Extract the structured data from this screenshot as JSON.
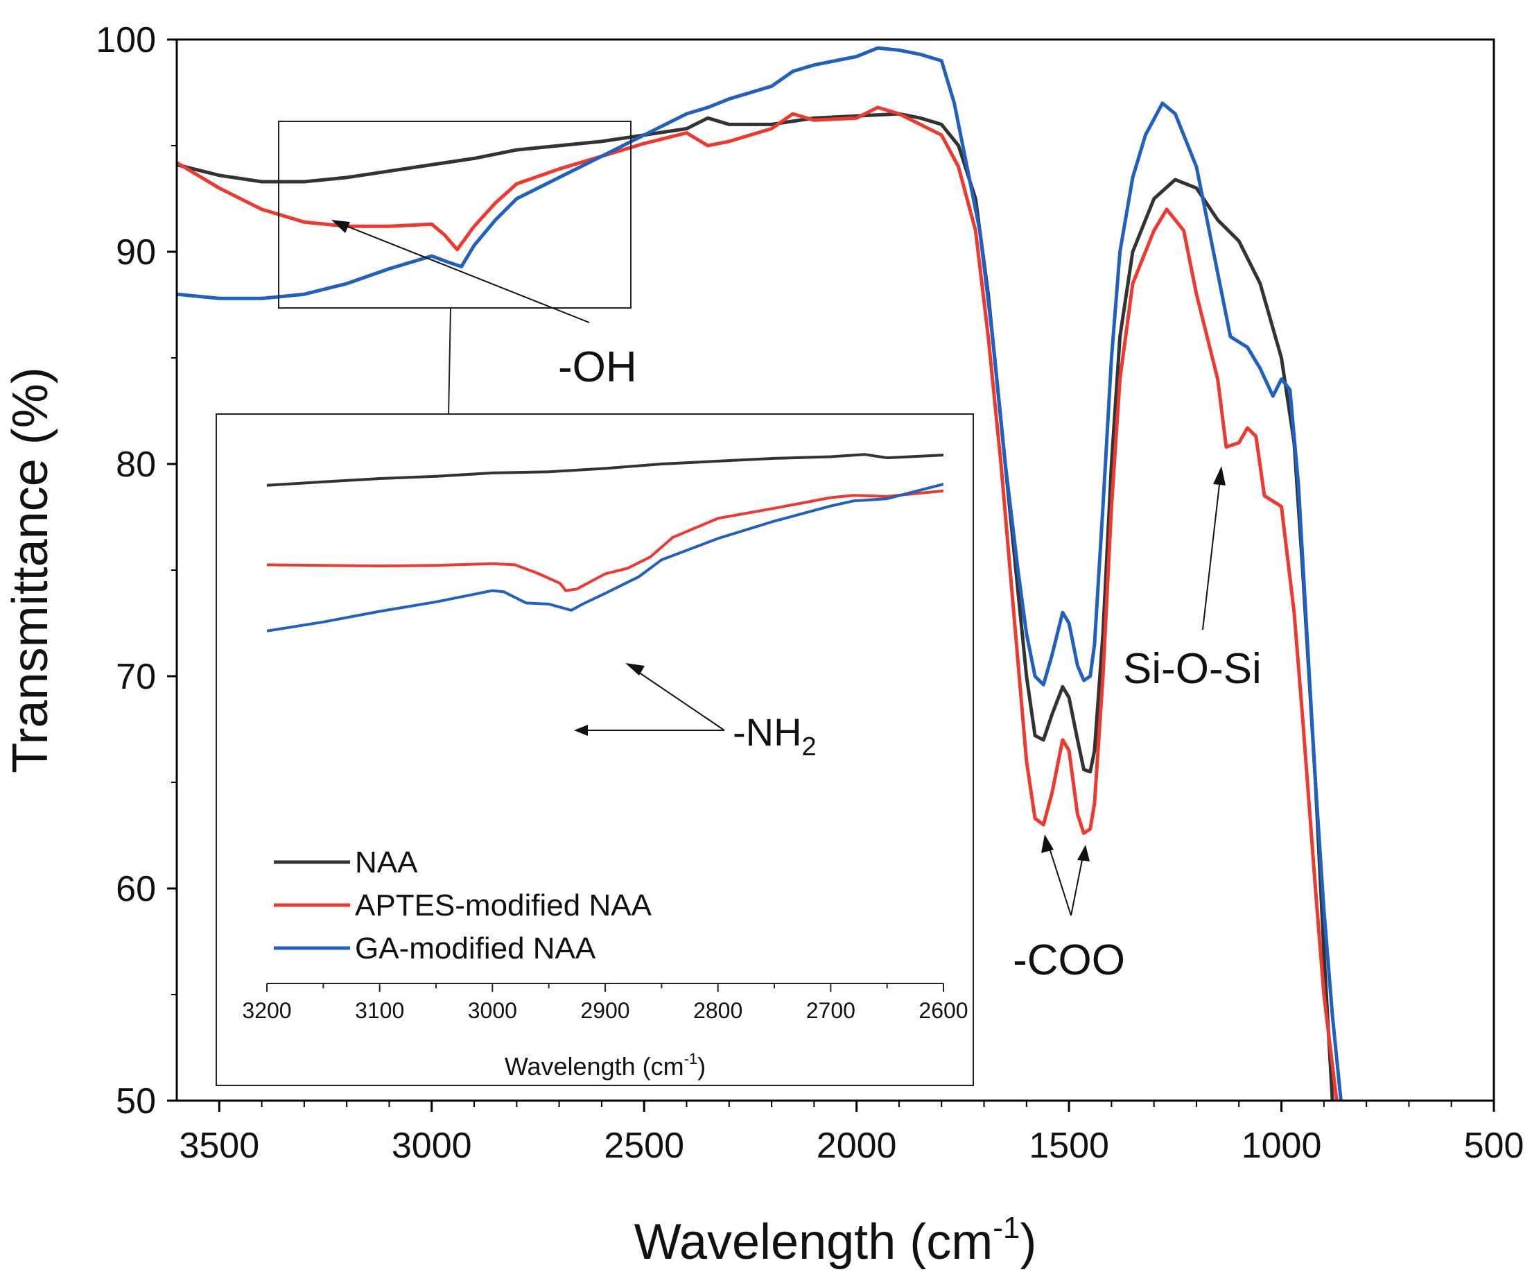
{
  "chart_data": [
    {
      "id": "main",
      "type": "line",
      "xlabel": "Wavelength (cm",
      "xlabel_sup": "-1",
      "xlabel_close": ")",
      "ylabel": "Transmittance (%)",
      "xlim": [
        3600,
        500
      ],
      "ylim": [
        50,
        100
      ],
      "x_ticks": [
        3500,
        3000,
        2500,
        2000,
        1500,
        1000,
        500
      ],
      "y_ticks": [
        50,
        60,
        70,
        80,
        90,
        100
      ],
      "series": [
        {
          "name": "NAA",
          "color": "#333333",
          "points": [
            [
              3600,
              94.1
            ],
            [
              3500,
              93.6
            ],
            [
              3400,
              93.3
            ],
            [
              3300,
              93.3
            ],
            [
              3200,
              93.5
            ],
            [
              3100,
              93.8
            ],
            [
              3000,
              94.1
            ],
            [
              2900,
              94.4
            ],
            [
              2800,
              94.8
            ],
            [
              2700,
              95.0
            ],
            [
              2600,
              95.2
            ],
            [
              2500,
              95.5
            ],
            [
              2400,
              95.8
            ],
            [
              2350,
              96.3
            ],
            [
              2300,
              96.0
            ],
            [
              2200,
              96.0
            ],
            [
              2100,
              96.3
            ],
            [
              2000,
              96.4
            ],
            [
              1900,
              96.5
            ],
            [
              1850,
              96.3
            ],
            [
              1800,
              96.0
            ],
            [
              1760,
              95.0
            ],
            [
              1720,
              92.5
            ],
            [
              1690,
              88.0
            ],
            [
              1660,
              82.0
            ],
            [
              1630,
              76.0
            ],
            [
              1600,
              70.0
            ],
            [
              1580,
              67.2
            ],
            [
              1560,
              67.0
            ],
            [
              1540,
              68.2
            ],
            [
              1515,
              69.5
            ],
            [
              1500,
              69.0
            ],
            [
              1480,
              67.0
            ],
            [
              1465,
              65.6
            ],
            [
              1450,
              65.5
            ],
            [
              1440,
              66.5
            ],
            [
              1420,
              72.0
            ],
            [
              1400,
              80.0
            ],
            [
              1380,
              86.0
            ],
            [
              1350,
              90.0
            ],
            [
              1300,
              92.5
            ],
            [
              1250,
              93.4
            ],
            [
              1200,
              93.0
            ],
            [
              1150,
              91.5
            ],
            [
              1100,
              90.5
            ],
            [
              1050,
              88.5
            ],
            [
              1000,
              85.0
            ],
            [
              970,
              81.0
            ],
            [
              950,
              75.0
            ],
            [
              920,
              65.0
            ],
            [
              900,
              57.0
            ],
            [
              880,
              50.0
            ]
          ]
        },
        {
          "name": "APTES-modified NAA",
          "color": "#ee3a2e",
          "points": [
            [
              3600,
              94.2
            ],
            [
              3500,
              93.0
            ],
            [
              3400,
              92.0
            ],
            [
              3300,
              91.4
            ],
            [
              3200,
              91.2
            ],
            [
              3100,
              91.2
            ],
            [
              3000,
              91.3
            ],
            [
              2970,
              90.8
            ],
            [
              2940,
              90.1
            ],
            [
              2900,
              91.2
            ],
            [
              2850,
              92.3
            ],
            [
              2800,
              93.2
            ],
            [
              2700,
              93.9
            ],
            [
              2600,
              94.5
            ],
            [
              2500,
              95.1
            ],
            [
              2400,
              95.6
            ],
            [
              2350,
              95.0
            ],
            [
              2300,
              95.2
            ],
            [
              2200,
              95.8
            ],
            [
              2150,
              96.5
            ],
            [
              2100,
              96.2
            ],
            [
              2000,
              96.3
            ],
            [
              1950,
              96.8
            ],
            [
              1900,
              96.5
            ],
            [
              1800,
              95.5
            ],
            [
              1760,
              94.0
            ],
            [
              1720,
              91.0
            ],
            [
              1690,
              86.0
            ],
            [
              1660,
              80.0
            ],
            [
              1630,
              73.0
            ],
            [
              1600,
              66.0
            ],
            [
              1580,
              63.3
            ],
            [
              1560,
              63.0
            ],
            [
              1540,
              64.5
            ],
            [
              1515,
              67.0
            ],
            [
              1500,
              66.5
            ],
            [
              1480,
              63.5
            ],
            [
              1465,
              62.6
            ],
            [
              1450,
              62.8
            ],
            [
              1440,
              64.0
            ],
            [
              1420,
              70.0
            ],
            [
              1400,
              78.0
            ],
            [
              1380,
              84.0
            ],
            [
              1350,
              88.5
            ],
            [
              1300,
              91.0
            ],
            [
              1270,
              92.0
            ],
            [
              1230,
              91.0
            ],
            [
              1200,
              88.0
            ],
            [
              1150,
              84.0
            ],
            [
              1130,
              80.8
            ],
            [
              1100,
              81.0
            ],
            [
              1080,
              81.7
            ],
            [
              1060,
              81.3
            ],
            [
              1040,
              78.5
            ],
            [
              1000,
              78.0
            ],
            [
              970,
              73.0
            ],
            [
              950,
              68.0
            ],
            [
              920,
              60.0
            ],
            [
              900,
              55.0
            ],
            [
              870,
              50.0
            ]
          ]
        },
        {
          "name": "GA-modified NAA",
          "color": "#2060c0",
          "points": [
            [
              3600,
              88.0
            ],
            [
              3500,
              87.8
            ],
            [
              3400,
              87.8
            ],
            [
              3300,
              88.0
            ],
            [
              3200,
              88.5
            ],
            [
              3100,
              89.2
            ],
            [
              3000,
              89.8
            ],
            [
              2960,
              89.5
            ],
            [
              2930,
              89.3
            ],
            [
              2900,
              90.3
            ],
            [
              2850,
              91.5
            ],
            [
              2800,
              92.5
            ],
            [
              2700,
              93.5
            ],
            [
              2600,
              94.5
            ],
            [
              2500,
              95.5
            ],
            [
              2400,
              96.5
            ],
            [
              2350,
              96.8
            ],
            [
              2300,
              97.2
            ],
            [
              2200,
              97.8
            ],
            [
              2150,
              98.5
            ],
            [
              2100,
              98.8
            ],
            [
              2000,
              99.2
            ],
            [
              1950,
              99.6
            ],
            [
              1900,
              99.5
            ],
            [
              1850,
              99.3
            ],
            [
              1800,
              99.0
            ],
            [
              1770,
              97.0
            ],
            [
              1740,
              94.0
            ],
            [
              1710,
              91.0
            ],
            [
              1680,
              86.0
            ],
            [
              1650,
              80.0
            ],
            [
              1620,
              75.0
            ],
            [
              1600,
              72.0
            ],
            [
              1580,
              70.0
            ],
            [
              1560,
              69.6
            ],
            [
              1540,
              71.0
            ],
            [
              1515,
              73.0
            ],
            [
              1500,
              72.5
            ],
            [
              1480,
              70.5
            ],
            [
              1465,
              69.8
            ],
            [
              1450,
              70.0
            ],
            [
              1440,
              71.5
            ],
            [
              1420,
              78.0
            ],
            [
              1400,
              85.0
            ],
            [
              1380,
              90.0
            ],
            [
              1350,
              93.5
            ],
            [
              1320,
              95.5
            ],
            [
              1280,
              97.0
            ],
            [
              1250,
              96.5
            ],
            [
              1200,
              94.0
            ],
            [
              1150,
              89.0
            ],
            [
              1120,
              86.0
            ],
            [
              1080,
              85.5
            ],
            [
              1050,
              84.5
            ],
            [
              1020,
              83.2
            ],
            [
              1000,
              84.0
            ],
            [
              980,
              83.5
            ],
            [
              960,
              79.0
            ],
            [
              940,
              72.0
            ],
            [
              920,
              65.0
            ],
            [
              900,
              59.0
            ],
            [
              880,
              54.0
            ],
            [
              860,
              50.0
            ]
          ]
        }
      ]
    },
    {
      "id": "inset",
      "type": "line",
      "xlabel": "Wavelength (cm",
      "xlabel_sup": "-1",
      "xlabel_close": ")",
      "xlim": [
        3200,
        2600
      ],
      "x_ticks": [
        3200,
        3100,
        3000,
        2900,
        2800,
        2700,
        2600
      ],
      "ylim": [
        0,
        100
      ],
      "series": [
        {
          "name": "NAA",
          "color": "#333333",
          "points": [
            [
              3200,
              88.9
            ],
            [
              3150,
              89.5
            ],
            [
              3100,
              90.1
            ],
            [
              3050,
              90.5
            ],
            [
              3000,
              91.1
            ],
            [
              2950,
              91.3
            ],
            [
              2900,
              91.9
            ],
            [
              2850,
              92.7
            ],
            [
              2800,
              93.2
            ],
            [
              2750,
              93.7
            ],
            [
              2700,
              94.0
            ],
            [
              2670,
              94.4
            ],
            [
              2650,
              93.8
            ],
            [
              2600,
              94.3
            ]
          ]
        },
        {
          "name": "APTES-modified NAA",
          "color": "#ee3a2e",
          "points": [
            [
              3200,
              74.7
            ],
            [
              3150,
              74.6
            ],
            [
              3100,
              74.5
            ],
            [
              3050,
              74.6
            ],
            [
              3000,
              74.9
            ],
            [
              2980,
              74.7
            ],
            [
              2960,
              73.2
            ],
            [
              2940,
              71.4
            ],
            [
              2935,
              70.1
            ],
            [
              2925,
              70.4
            ],
            [
              2900,
              73.1
            ],
            [
              2880,
              74.1
            ],
            [
              2860,
              76.1
            ],
            [
              2840,
              79.6
            ],
            [
              2800,
              83.0
            ],
            [
              2750,
              84.8
            ],
            [
              2700,
              86.7
            ],
            [
              2680,
              87.1
            ],
            [
              2650,
              86.9
            ],
            [
              2600,
              87.9
            ]
          ]
        },
        {
          "name": "GA-modified NAA",
          "color": "#2060c0",
          "points": [
            [
              3200,
              62.9
            ],
            [
              3150,
              64.5
            ],
            [
              3100,
              66.4
            ],
            [
              3050,
              68.1
            ],
            [
              3000,
              70.1
            ],
            [
              2990,
              69.9
            ],
            [
              2970,
              67.9
            ],
            [
              2950,
              67.7
            ],
            [
              2930,
              66.6
            ],
            [
              2920,
              67.7
            ],
            [
              2900,
              69.6
            ],
            [
              2870,
              72.6
            ],
            [
              2850,
              75.6
            ],
            [
              2800,
              79.4
            ],
            [
              2750,
              82.5
            ],
            [
              2700,
              85.2
            ],
            [
              2680,
              86.1
            ],
            [
              2650,
              86.5
            ],
            [
              2600,
              89.1
            ]
          ]
        }
      ]
    }
  ],
  "annotations": {
    "oh": "-OH",
    "nh2": "-NH",
    "nh2_sub": "2",
    "coo": "-COO",
    "siosi": "Si-O-Si"
  }
}
